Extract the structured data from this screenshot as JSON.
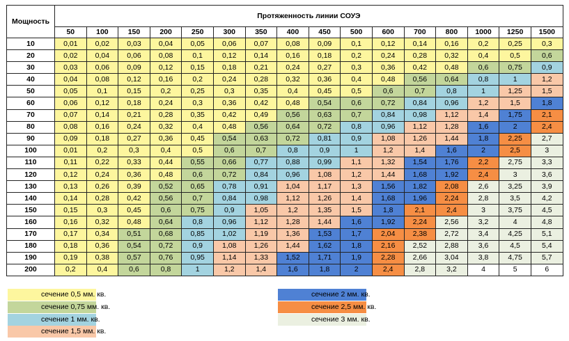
{
  "table": {
    "power_header": "Мощность",
    "length_header": "Протяженность линии СОУЭ",
    "lengths": [
      "50",
      "100",
      "150",
      "200",
      "250",
      "300",
      "350",
      "400",
      "450",
      "500",
      "600",
      "700",
      "800",
      "1000",
      "1250",
      "1500"
    ],
    "rows": [
      {
        "power": "10",
        "values": [
          "0,01",
          "0,02",
          "0,03",
          "0,04",
          "0,05",
          "0,06",
          "0,07",
          "0,08",
          "0,09",
          "0,1",
          "0,12",
          "0,14",
          "0,16",
          "0,2",
          "0,25",
          "0,3"
        ],
        "section": [
          "a",
          "a",
          "a",
          "a",
          "a",
          "a",
          "a",
          "a",
          "a",
          "a",
          "a",
          "a",
          "a",
          "a",
          "a",
          "a"
        ]
      },
      {
        "power": "20",
        "values": [
          "0,02",
          "0,04",
          "0,06",
          "0,08",
          "0,1",
          "0,12",
          "0,14",
          "0,16",
          "0,18",
          "0,2",
          "0,24",
          "0,28",
          "0,32",
          "0,4",
          "0,5",
          "0,6"
        ],
        "section": [
          "a",
          "a",
          "a",
          "a",
          "a",
          "a",
          "a",
          "a",
          "a",
          "a",
          "a",
          "a",
          "a",
          "a",
          "a",
          "b"
        ]
      },
      {
        "power": "30",
        "values": [
          "0,03",
          "0,06",
          "0,09",
          "0,12",
          "0,15",
          "0,18",
          "0,21",
          "0,24",
          "0,27",
          "0,3",
          "0,36",
          "0,42",
          "0,48",
          "0,6",
          "0,75",
          "0,9"
        ],
        "section": [
          "a",
          "a",
          "a",
          "a",
          "a",
          "a",
          "a",
          "a",
          "a",
          "a",
          "a",
          "a",
          "a",
          "b",
          "b",
          "c"
        ]
      },
      {
        "power": "40",
        "values": [
          "0,04",
          "0,08",
          "0,12",
          "0,16",
          "0,2",
          "0,24",
          "0,28",
          "0,32",
          "0,36",
          "0,4",
          "0,48",
          "0,56",
          "0,64",
          "0,8",
          "1",
          "1,2"
        ],
        "section": [
          "a",
          "a",
          "a",
          "a",
          "a",
          "a",
          "a",
          "a",
          "a",
          "a",
          "a",
          "b",
          "b",
          "c",
          "c",
          "d"
        ]
      },
      {
        "power": "50",
        "values": [
          "0,05",
          "0,1",
          "0,15",
          "0,2",
          "0,25",
          "0,3",
          "0,35",
          "0,4",
          "0,45",
          "0,5",
          "0,6",
          "0,7",
          "0,8",
          "1",
          "1,25",
          "1,5"
        ],
        "section": [
          "a",
          "a",
          "a",
          "a",
          "a",
          "a",
          "a",
          "a",
          "a",
          "a",
          "b",
          "b",
          "c",
          "c",
          "d",
          "d"
        ]
      },
      {
        "power": "60",
        "values": [
          "0,06",
          "0,12",
          "0,18",
          "0,24",
          "0,3",
          "0,36",
          "0,42",
          "0,48",
          "0,54",
          "0,6",
          "0,72",
          "0,84",
          "0,96",
          "1,2",
          "1,5",
          "1,8"
        ],
        "section": [
          "a",
          "a",
          "a",
          "a",
          "a",
          "a",
          "a",
          "a",
          "b",
          "b",
          "b",
          "c",
          "c",
          "d",
          "d",
          "e"
        ]
      },
      {
        "power": "70",
        "values": [
          "0,07",
          "0,14",
          "0,21",
          "0,28",
          "0,35",
          "0,42",
          "0,49",
          "0,56",
          "0,63",
          "0,7",
          "0,84",
          "0,98",
          "1,12",
          "1,4",
          "1,75",
          "2,1"
        ],
        "section": [
          "a",
          "a",
          "a",
          "a",
          "a",
          "a",
          "a",
          "b",
          "b",
          "b",
          "c",
          "c",
          "d",
          "d",
          "e",
          "f"
        ]
      },
      {
        "power": "80",
        "values": [
          "0,08",
          "0,16",
          "0,24",
          "0,32",
          "0,4",
          "0,48",
          "0,56",
          "0,64",
          "0,72",
          "0,8",
          "0,96",
          "1,12",
          "1,28",
          "1,6",
          "2",
          "2,4"
        ],
        "section": [
          "a",
          "a",
          "a",
          "a",
          "a",
          "a",
          "b",
          "b",
          "b",
          "c",
          "c",
          "d",
          "d",
          "e",
          "e",
          "f"
        ]
      },
      {
        "power": "90",
        "values": [
          "0,09",
          "0,18",
          "0,27",
          "0,36",
          "0,45",
          "0,54",
          "0,63",
          "0,72",
          "0,81",
          "0,9",
          "1,08",
          "1,26",
          "1,44",
          "1,8",
          "2,25",
          "2,7"
        ],
        "section": [
          "a",
          "a",
          "a",
          "a",
          "a",
          "b",
          "b",
          "b",
          "c",
          "c",
          "d",
          "d",
          "d",
          "e",
          "f",
          "g"
        ]
      },
      {
        "power": "100",
        "values": [
          "0,01",
          "0,2",
          "0,3",
          "0,4",
          "0,5",
          "0,6",
          "0,7",
          "0,8",
          "0,9",
          "1",
          "1,2",
          "1,4",
          "1,6",
          "2",
          "2,5",
          "3"
        ],
        "section": [
          "a",
          "a",
          "a",
          "a",
          "a",
          "b",
          "b",
          "c",
          "c",
          "c",
          "d",
          "d",
          "e",
          "e",
          "f",
          "g"
        ]
      },
      {
        "power": "110",
        "values": [
          "0,11",
          "0,22",
          "0,33",
          "0,44",
          "0,55",
          "0,66",
          "0,77",
          "0,88",
          "0,99",
          "1,1",
          "1,32",
          "1,54",
          "1,76",
          "2,2",
          "2,75",
          "3,3"
        ],
        "section": [
          "a",
          "a",
          "a",
          "a",
          "b",
          "b",
          "c",
          "c",
          "c",
          "d",
          "d",
          "e",
          "e",
          "f",
          "g",
          "g"
        ]
      },
      {
        "power": "120",
        "values": [
          "0,12",
          "0,24",
          "0,36",
          "0,48",
          "0,6",
          "0,72",
          "0,84",
          "0,96",
          "1,08",
          "1,2",
          "1,44",
          "1,68",
          "1,92",
          "2,4",
          "3",
          "3,6"
        ],
        "section": [
          "a",
          "a",
          "a",
          "a",
          "b",
          "b",
          "c",
          "c",
          "d",
          "d",
          "d",
          "e",
          "e",
          "f",
          "g",
          "g"
        ]
      },
      {
        "power": "130",
        "values": [
          "0,13",
          "0,26",
          "0,39",
          "0,52",
          "0,65",
          "0,78",
          "0,91",
          "1,04",
          "1,17",
          "1,3",
          "1,56",
          "1,82",
          "2,08",
          "2,6",
          "3,25",
          "3,9"
        ],
        "section": [
          "a",
          "a",
          "a",
          "b",
          "b",
          "c",
          "c",
          "d",
          "d",
          "d",
          "e",
          "e",
          "f",
          "g",
          "g",
          "g"
        ]
      },
      {
        "power": "140",
        "values": [
          "0,14",
          "0,28",
          "0,42",
          "0,56",
          "0,7",
          "0,84",
          "0,98",
          "1,12",
          "1,26",
          "1,4",
          "1,68",
          "1,96",
          "2,24",
          "2,8",
          "3,5",
          "4,2"
        ],
        "section": [
          "a",
          "a",
          "a",
          "b",
          "b",
          "c",
          "c",
          "d",
          "d",
          "d",
          "e",
          "e",
          "f",
          "g",
          "g",
          "g"
        ]
      },
      {
        "power": "150",
        "values": [
          "0,15",
          "0,3",
          "0,45",
          "0,6",
          "0,75",
          "0,9",
          "1,05",
          "1,2",
          "1,35",
          "1,5",
          "1,8",
          "2,1",
          "2,4",
          "3",
          "3,75",
          "4,5"
        ],
        "section": [
          "a",
          "a",
          "a",
          "b",
          "b",
          "c",
          "d",
          "d",
          "d",
          "d",
          "e",
          "f",
          "f",
          "g",
          "g",
          "g"
        ]
      },
      {
        "power": "160",
        "values": [
          "0,16",
          "0,32",
          "0,48",
          "0,64",
          "0,8",
          "0,96",
          "1,12",
          "1,28",
          "1,44",
          "1,6",
          "1,92",
          "2,24",
          "2,56",
          "3,2",
          "4",
          "4,8"
        ],
        "section": [
          "a",
          "a",
          "a",
          "b",
          "c",
          "c",
          "d",
          "d",
          "d",
          "e",
          "e",
          "f",
          "g",
          "g",
          "g",
          "g"
        ]
      },
      {
        "power": "170",
        "values": [
          "0,17",
          "0,34",
          "0,51",
          "0,68",
          "0,85",
          "1,02",
          "1,19",
          "1,36",
          "1,53",
          "1,7",
          "2,04",
          "2,38",
          "2,72",
          "3,4",
          "4,25",
          "5,1"
        ],
        "section": [
          "a",
          "a",
          "b",
          "b",
          "c",
          "c",
          "d",
          "d",
          "e",
          "e",
          "f",
          "f",
          "g",
          "g",
          "g",
          "g"
        ]
      },
      {
        "power": "180",
        "values": [
          "0,18",
          "0,36",
          "0,54",
          "0,72",
          "0,9",
          "1,08",
          "1,26",
          "1,44",
          "1,62",
          "1,8",
          "2,16",
          "2,52",
          "2,88",
          "3,6",
          "4,5",
          "5,4"
        ],
        "section": [
          "a",
          "a",
          "b",
          "b",
          "c",
          "d",
          "d",
          "d",
          "e",
          "e",
          "f",
          "g",
          "g",
          "g",
          "g",
          "g"
        ]
      },
      {
        "power": "190",
        "values": [
          "0,19",
          "0,38",
          "0,57",
          "0,76",
          "0,95",
          "1,14",
          "1,33",
          "1,52",
          "1,71",
          "1,9",
          "2,28",
          "2,66",
          "3,04",
          "3,8",
          "4,75",
          "5,7"
        ],
        "section": [
          "a",
          "a",
          "b",
          "b",
          "c",
          "d",
          "d",
          "e",
          "e",
          "e",
          "f",
          "g",
          "g",
          "g",
          "g",
          "g"
        ]
      },
      {
        "power": "200",
        "values": [
          "0,2",
          "0,4",
          "0,6",
          "0,8",
          "1",
          "1,2",
          "1,4",
          "1,6",
          "1,8",
          "2",
          "2,4",
          "2,8",
          "3,2",
          "4",
          "5",
          "6"
        ],
        "section": [
          "a",
          "a",
          "b",
          "b",
          "c",
          "d",
          "d",
          "e",
          "e",
          "e",
          "f",
          "g",
          "g",
          "w",
          "w",
          "w"
        ]
      }
    ]
  },
  "colors": {
    "a": "#fdf69e",
    "b": "#c3d69b",
    "c": "#a3d3e0",
    "d": "#f9c8a8",
    "e": "#4f81d4",
    "f": "#f68e44",
    "g": "#ebf0e1",
    "w": "#ffffff"
  },
  "legend": {
    "items": [
      {
        "key": "a",
        "label": "сечение 0,5 мм. кв."
      },
      {
        "key": "b",
        "label": "сечение 0,75 мм. кв."
      },
      {
        "key": "c",
        "label": "сечение 1 мм. кв."
      },
      {
        "key": "d",
        "label": "сечение 1,5 мм. кв."
      },
      {
        "key": "e",
        "label": "сечение 2 мм. кв."
      },
      {
        "key": "f",
        "label": "сечение 2,5 мм. кв."
      },
      {
        "key": "g",
        "label": "сечение 3 мм. кв."
      }
    ]
  }
}
